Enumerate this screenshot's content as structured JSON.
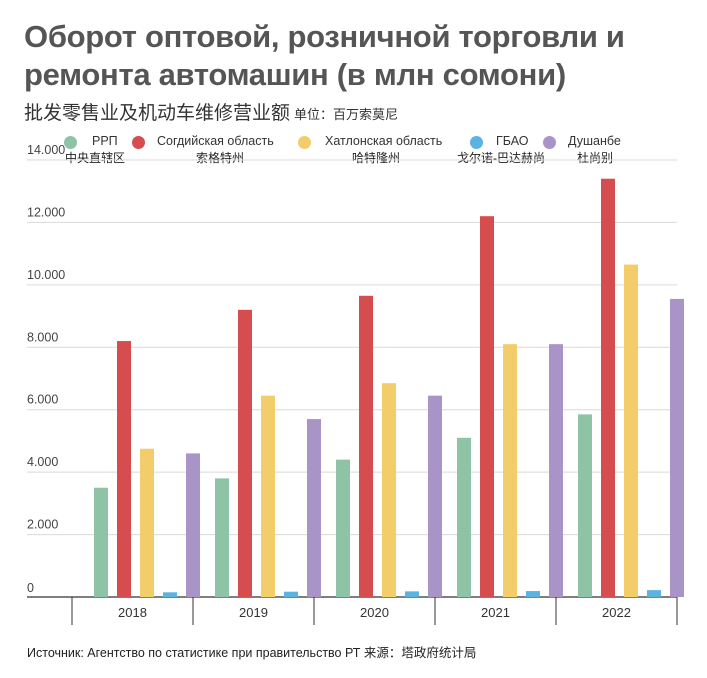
{
  "title": "Оборот оптовой, розничной торговли и ремонта автомашин (в млн сомони)",
  "subtitle": "批发零售业及机动车维修营业额",
  "unit": "单位：百万索莫尼",
  "legend": [
    {
      "name": "РРП",
      "zh": "中央直辖区",
      "color": "#8ec3a6"
    },
    {
      "name": "Согдийская область",
      "zh": "索格特州",
      "color": "#d64d50"
    },
    {
      "name": "Хатлонская область",
      "zh": "哈特隆州",
      "color": "#f2cd6a"
    },
    {
      "name": "ГБАО",
      "zh": "戈尔诺-巴达赫尚",
      "color": "#5ab3e0"
    },
    {
      "name": "Душанбе",
      "zh": "杜尚别",
      "color": "#a994c8"
    }
  ],
  "source": "Источник: Агентство по статистике при правительство РТ  来源：塔政府统计局",
  "chart_data": {
    "type": "bar",
    "categories": [
      "2018",
      "2019",
      "2020",
      "2021",
      "2022"
    ],
    "series": [
      {
        "name": "РРП",
        "values": [
          3500,
          3800,
          4400,
          5100,
          5850
        ]
      },
      {
        "name": "Согдийская область",
        "values": [
          8200,
          9200,
          9650,
          12200,
          13400
        ]
      },
      {
        "name": "Хатлонская область",
        "values": [
          4750,
          6450,
          6850,
          8100,
          10650
        ]
      },
      {
        "name": "ГБАО",
        "values": [
          150,
          170,
          180,
          190,
          220
        ]
      },
      {
        "name": "Душанбе",
        "values": [
          4600,
          5700,
          6450,
          8100,
          9550
        ]
      }
    ],
    "yticks": [
      "0",
      "2.000",
      "4.000",
      "6.000",
      "8.000",
      "10.000",
      "12.000",
      "14.000"
    ],
    "ylim": [
      0,
      14000
    ],
    "xlabel": "",
    "ylabel": ""
  }
}
